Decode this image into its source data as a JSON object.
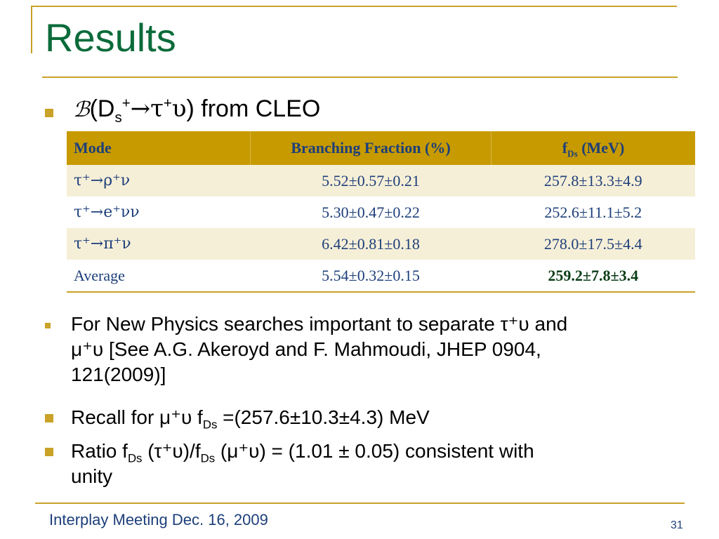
{
  "slide": {
    "title": "Results",
    "heading": {
      "prefix_symbol": "ℬ",
      "text_open": "(D",
      "sub_s": "s",
      "sup_plus": "+",
      "arrow": "→",
      "tau": "τ",
      "sup_plus2": "+",
      "upsilon": "υ",
      "close": ") from CLEO"
    },
    "table": {
      "headers": {
        "mode": "Mode",
        "bf": "Branching Fraction (%)",
        "fds_f": "f",
        "fds_sub": "Ds",
        "fds_unit": " (MeV)"
      },
      "rows": [
        {
          "mode": "τ⁺→ρ⁺ν",
          "bf": "5.52±0.57±0.21",
          "fds": "257.8±13.3±4.9"
        },
        {
          "mode": "τ⁺→e⁺νν",
          "bf": "5.30±0.47±0.22",
          "fds": "252.6±11.1±5.2"
        },
        {
          "mode": "τ⁺→π⁺ν",
          "bf": "6.42±0.81±0.18",
          "fds": "278.0±17.5±4.4"
        }
      ],
      "average": {
        "mode": "Average",
        "bf": "5.54±0.32±0.15",
        "fds": "259.2±7.8±3.4"
      }
    },
    "bullets": {
      "b1_line1": "For New Physics searches important to separate τ⁺υ and",
      "b1_line2": "μ⁺υ  [See A.G. Akeroyd and F. Mahmoudi, JHEP 0904,",
      "b1_line3": "121(2009)]",
      "b2_pre": "Recall for μ⁺υ f",
      "b2_sub": "Ds",
      "b2_post": " =(257.6±10.3±4.3) MeV",
      "b3_pre": "Ratio  f",
      "b3_sub1": "Ds",
      "b3_mid": " (τ⁺υ)/f",
      "b3_sub2": "Ds",
      "b3_post": " (μ⁺υ) = (1.01 ± 0.05) consistent with",
      "b3_line2": "unity"
    },
    "footer": {
      "text": "Interplay Meeting Dec. 16, 2009",
      "page_number": "31"
    },
    "colors": {
      "title": "#0b6b3a",
      "accent": "#c9a227",
      "table_header": "#c79a00",
      "table_text": "#1d3f7a"
    }
  }
}
